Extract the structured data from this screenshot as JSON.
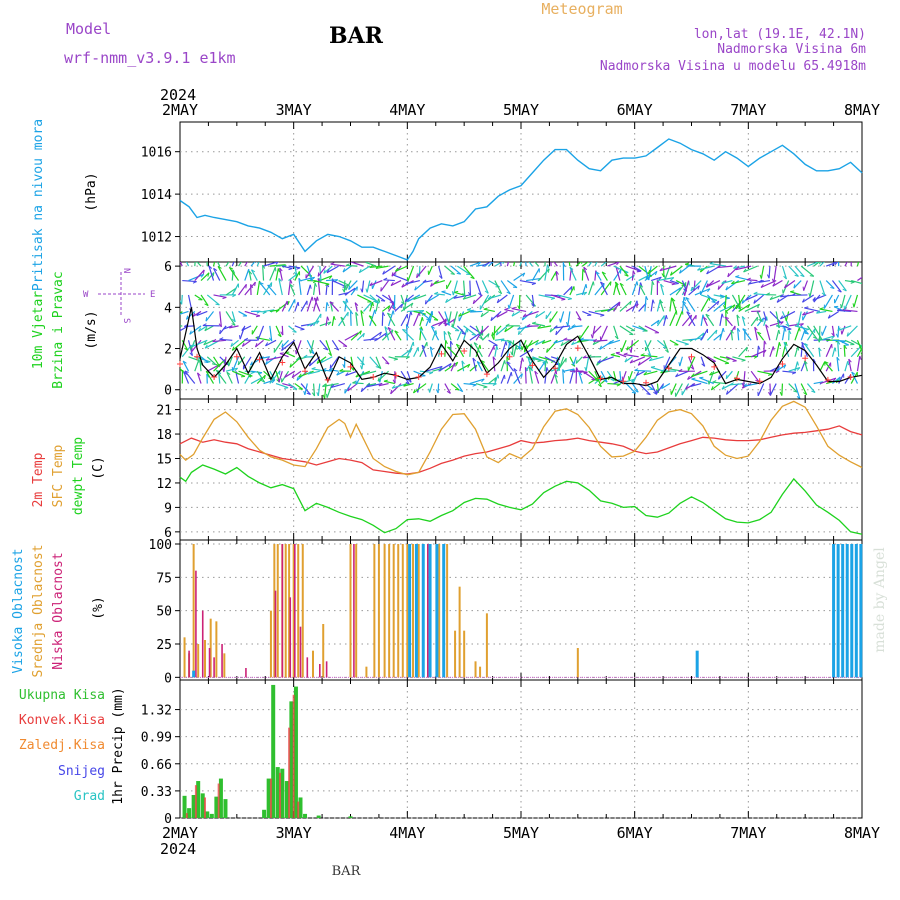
{
  "header": {
    "model_label": "Model",
    "model_name": "wrf-nmm_v3.9.1  e1km",
    "station": "BAR",
    "product": "Meteogram",
    "coords": "lon,lat (19.1E, 42.1N)",
    "elevation": "Nadmorska Visina 6m",
    "model_elevation": "Nadmorska Visina u modelu 65.4918m",
    "footer_station": "BAR",
    "watermark": "made by Angel"
  },
  "time_axis": {
    "year": "2024",
    "ticks": [
      "2MAY",
      "3MAY",
      "4MAY",
      "5MAY",
      "6MAY",
      "7MAY",
      "8MAY"
    ],
    "start_day": 2,
    "end_day": 8
  },
  "colors": {
    "pressure": "#1ba3e6",
    "wind_speed": "#000000",
    "gust": "#ff3b3b",
    "t2m": "#e83c3c",
    "sfc": "#e0a030",
    "dew": "#1ed21e",
    "high_cloud": "#1ba3e6",
    "mid_cloud": "#e0a030",
    "low_cloud": "#cc2277",
    "total_precip": "#2fbf2f",
    "conv_precip": "#e83c3c",
    "freezing": "#f08a30",
    "snow": "#4646e8",
    "hail": "#28c4c4",
    "title_purple": "#9a46c8",
    "meteogram_orange": "#e8b060"
  },
  "chart_data": [
    {
      "type": "line",
      "panel": "pressure",
      "ylabel": "Pritisak na nivou mora",
      "unit": "(hPa)",
      "yticks": [
        1012,
        1014,
        1016
      ],
      "ylim": [
        1010.8,
        1017.4
      ],
      "series": [
        {
          "x": [
            2.0,
            2.08,
            2.15,
            2.22,
            2.3,
            2.4,
            2.5,
            2.6,
            2.7,
            2.8,
            2.9,
            3.0,
            3.1,
            3.2,
            3.3,
            3.4,
            3.5,
            3.6,
            3.7,
            3.8,
            3.9,
            4.0,
            4.05,
            4.1,
            4.2,
            4.3,
            4.4,
            4.5,
            4.6,
            4.7,
            4.8,
            4.9,
            5.0,
            5.1,
            5.2,
            5.3,
            5.4,
            5.5,
            5.6,
            5.7,
            5.8,
            5.9,
            6.0,
            6.1,
            6.2,
            6.3,
            6.4,
            6.5,
            6.6,
            6.7,
            6.8,
            6.9,
            7.0,
            7.1,
            7.2,
            7.3,
            7.4,
            7.5,
            7.6,
            7.7,
            7.8,
            7.9,
            8.0
          ],
          "values": [
            1013.7,
            1013.4,
            1012.9,
            1013.0,
            1012.9,
            1012.8,
            1012.7,
            1012.5,
            1012.4,
            1012.2,
            1011.9,
            1012.1,
            1011.3,
            1011.8,
            1012.1,
            1012.0,
            1011.8,
            1011.5,
            1011.5,
            1011.3,
            1011.1,
            1010.9,
            1011.3,
            1011.9,
            1012.4,
            1012.6,
            1012.5,
            1012.7,
            1013.3,
            1013.4,
            1013.9,
            1014.2,
            1014.4,
            1015.0,
            1015.6,
            1016.1,
            1016.1,
            1015.6,
            1015.2,
            1015.1,
            1015.6,
            1015.7,
            1015.7,
            1015.8,
            1016.2,
            1016.6,
            1016.4,
            1016.1,
            1015.9,
            1015.6,
            1016.0,
            1015.7,
            1015.3,
            1015.7,
            1016.0,
            1016.3,
            1015.9,
            1015.4,
            1015.1,
            1015.1,
            1015.2,
            1015.5,
            1015.0
          ]
        }
      ]
    },
    {
      "type": "line",
      "panel": "wind",
      "ylabel": [
        "10m Vjetar",
        "Brzina i Pravac"
      ],
      "unit": "(m/s)",
      "compass": {
        "n": "N",
        "s": "S",
        "w": "W",
        "e": "E"
      },
      "yticks": [
        0,
        2,
        4,
        6
      ],
      "ylim": [
        -0.45,
        6.2
      ],
      "barb_rows": [
        0.3,
        0.9,
        1.6,
        2.4,
        3.1,
        3.8,
        4.6,
        5.3,
        6.0
      ],
      "series": [
        {
          "name": "speed",
          "x": [
            2.0,
            2.1,
            2.15,
            2.2,
            2.3,
            2.4,
            2.5,
            2.6,
            2.7,
            2.8,
            2.9,
            3.0,
            3.1,
            3.2,
            3.3,
            3.4,
            3.5,
            3.6,
            3.7,
            3.8,
            3.9,
            4.0,
            4.1,
            4.2,
            4.3,
            4.4,
            4.5,
            4.6,
            4.7,
            4.8,
            4.9,
            5.0,
            5.1,
            5.2,
            5.3,
            5.4,
            5.5,
            5.6,
            5.7,
            5.8,
            5.9,
            6.0,
            6.1,
            6.2,
            6.3,
            6.4,
            6.5,
            6.6,
            6.7,
            6.8,
            6.9,
            7.0,
            7.1,
            7.2,
            7.3,
            7.4,
            7.5,
            7.6,
            7.7,
            7.8,
            7.9,
            8.0
          ],
          "values": [
            1.5,
            4.0,
            2.0,
            1.2,
            0.6,
            1.2,
            2.0,
            0.8,
            1.8,
            0.5,
            1.6,
            2.3,
            1.0,
            1.8,
            0.4,
            1.6,
            1.3,
            0.5,
            0.6,
            0.8,
            0.7,
            0.5,
            0.6,
            1.1,
            2.2,
            1.4,
            2.4,
            1.9,
            0.8,
            1.3,
            2.0,
            2.4,
            1.4,
            0.6,
            1.2,
            2.2,
            2.6,
            1.6,
            0.5,
            0.6,
            0.3,
            0.3,
            0.2,
            0.4,
            1.2,
            2.0,
            2.0,
            1.7,
            1.3,
            0.3,
            0.5,
            0.4,
            0.3,
            0.6,
            1.5,
            2.2,
            1.9,
            1.2,
            0.4,
            0.4,
            0.6,
            0.7
          ]
        }
      ]
    },
    {
      "type": "line",
      "panel": "temperature",
      "ylabel": [
        "2m Temp",
        "SFC Temp",
        "dewpt Temp"
      ],
      "unit": "(C)",
      "yticks": [
        6,
        9,
        12,
        15,
        18,
        21
      ],
      "ylim": [
        5.0,
        22.3
      ],
      "series": [
        {
          "name": "2m Temp",
          "x": [
            2.0,
            2.1,
            2.2,
            2.3,
            2.4,
            2.5,
            2.6,
            2.7,
            2.8,
            2.9,
            3.0,
            3.1,
            3.2,
            3.3,
            3.4,
            3.5,
            3.6,
            3.7,
            3.8,
            3.9,
            4.0,
            4.1,
            4.2,
            4.3,
            4.4,
            4.5,
            4.6,
            4.7,
            4.8,
            4.9,
            5.0,
            5.1,
            5.2,
            5.3,
            5.4,
            5.5,
            5.6,
            5.7,
            5.8,
            5.9,
            6.0,
            6.1,
            6.2,
            6.3,
            6.4,
            6.5,
            6.6,
            6.7,
            6.8,
            6.9,
            7.0,
            7.1,
            7.2,
            7.3,
            7.4,
            7.5,
            7.6,
            7.7,
            7.8,
            7.9,
            8.0
          ],
          "values": [
            16.8,
            17.5,
            17.0,
            17.3,
            17.0,
            16.8,
            16.2,
            15.8,
            15.4,
            15.0,
            14.8,
            14.6,
            14.2,
            14.6,
            15.0,
            14.8,
            14.5,
            13.6,
            13.4,
            13.2,
            13.1,
            13.3,
            13.8,
            14.4,
            14.8,
            15.3,
            15.6,
            15.8,
            16.2,
            16.6,
            17.2,
            16.9,
            17.0,
            17.2,
            17.3,
            17.5,
            17.2,
            17.0,
            16.8,
            16.5,
            15.9,
            15.6,
            15.8,
            16.3,
            16.8,
            17.2,
            17.6,
            17.5,
            17.3,
            17.2,
            17.2,
            17.3,
            17.6,
            17.9,
            18.1,
            18.2,
            18.4,
            18.6,
            19.0,
            18.3,
            17.9
          ]
        },
        {
          "name": "SFC Temp",
          "x": [
            2.0,
            2.05,
            2.12,
            2.2,
            2.3,
            2.4,
            2.5,
            2.6,
            2.7,
            2.8,
            2.9,
            3.0,
            3.1,
            3.2,
            3.3,
            3.4,
            3.45,
            3.5,
            3.55,
            3.6,
            3.7,
            3.8,
            3.9,
            4.0,
            4.1,
            4.2,
            4.3,
            4.4,
            4.5,
            4.6,
            4.7,
            4.8,
            4.9,
            5.0,
            5.1,
            5.2,
            5.3,
            5.4,
            5.5,
            5.6,
            5.7,
            5.8,
            5.9,
            6.0,
            6.1,
            6.2,
            6.3,
            6.4,
            6.5,
            6.6,
            6.7,
            6.8,
            6.9,
            7.0,
            7.1,
            7.2,
            7.3,
            7.4,
            7.5,
            7.6,
            7.7,
            7.8,
            7.9,
            8.0
          ],
          "values": [
            15.5,
            14.8,
            15.5,
            17.5,
            19.8,
            20.7,
            19.5,
            17.6,
            16.0,
            15.2,
            14.8,
            14.2,
            14.0,
            16.2,
            18.8,
            19.8,
            19.3,
            17.6,
            19.2,
            17.8,
            15.0,
            14.0,
            13.4,
            13.0,
            13.3,
            15.8,
            18.6,
            20.4,
            20.5,
            18.6,
            15.2,
            14.5,
            15.6,
            15.0,
            16.2,
            18.9,
            20.8,
            21.1,
            20.4,
            18.8,
            16.5,
            15.2,
            15.3,
            15.9,
            17.6,
            19.7,
            20.7,
            21.0,
            20.5,
            19.0,
            16.5,
            15.4,
            15.0,
            15.3,
            17.1,
            19.7,
            21.4,
            22.0,
            21.3,
            19.0,
            16.5,
            15.4,
            14.6,
            13.9
          ]
        },
        {
          "name": "dewpt Temp",
          "x": [
            2.0,
            2.05,
            2.1,
            2.2,
            2.3,
            2.4,
            2.5,
            2.6,
            2.7,
            2.8,
            2.9,
            3.0,
            3.1,
            3.2,
            3.3,
            3.4,
            3.5,
            3.6,
            3.7,
            3.8,
            3.9,
            4.0,
            4.1,
            4.2,
            4.3,
            4.4,
            4.5,
            4.6,
            4.7,
            4.8,
            4.9,
            5.0,
            5.1,
            5.2,
            5.3,
            5.4,
            5.5,
            5.6,
            5.7,
            5.8,
            5.9,
            6.0,
            6.1,
            6.2,
            6.3,
            6.4,
            6.5,
            6.6,
            6.7,
            6.8,
            6.9,
            7.0,
            7.1,
            7.2,
            7.3,
            7.4,
            7.5,
            7.6,
            7.7,
            7.8,
            7.9,
            8.0
          ],
          "values": [
            12.7,
            12.2,
            13.3,
            14.2,
            13.7,
            13.1,
            13.9,
            12.8,
            12.0,
            11.4,
            11.8,
            11.3,
            8.6,
            9.5,
            9.0,
            8.4,
            7.9,
            7.5,
            6.8,
            5.9,
            6.4,
            7.5,
            7.6,
            7.3,
            8.0,
            8.6,
            9.6,
            10.1,
            10.0,
            9.4,
            9.0,
            8.7,
            9.4,
            10.8,
            11.6,
            12.2,
            12.0,
            11.1,
            9.8,
            9.5,
            9.0,
            9.1,
            8.0,
            7.8,
            8.3,
            9.5,
            10.3,
            9.6,
            8.6,
            7.6,
            7.2,
            7.1,
            7.5,
            8.4,
            10.6,
            12.5,
            11.0,
            9.3,
            8.4,
            7.4,
            6.0,
            5.7
          ]
        }
      ]
    },
    {
      "type": "bar",
      "panel": "clouds",
      "ylabel": [
        "Visoka Oblacnost",
        "Srednja Oblacnost",
        "Niska Oblacnost"
      ],
      "unit": "(%)",
      "yticks": [
        0,
        25,
        50,
        75,
        100
      ],
      "ylim": [
        -2,
        103
      ],
      "series": [
        {
          "name": "Srednja Oblacnost",
          "x": [
            2.04,
            2.08,
            2.12,
            2.16,
            2.22,
            2.27,
            2.32,
            2.39,
            2.8,
            2.83,
            2.86,
            2.9,
            2.93,
            2.96,
            3.0,
            3.04,
            3.08,
            3.17,
            3.26,
            3.5,
            3.55,
            3.64,
            3.71,
            3.75,
            3.8,
            3.84,
            3.88,
            3.92,
            3.96,
            4.0,
            4.05,
            4.1,
            4.2,
            4.28,
            4.35,
            4.42,
            4.46,
            4.5,
            4.6,
            4.64,
            4.7,
            5.5
          ],
          "values": [
            30,
            18,
            100,
            25,
            28,
            44,
            42,
            18,
            50,
            100,
            100,
            100,
            100,
            100,
            100,
            100,
            100,
            20,
            40,
            100,
            100,
            8,
            100,
            100,
            100,
            100,
            100,
            100,
            100,
            100,
            100,
            100,
            100,
            100,
            100,
            35,
            68,
            35,
            12,
            8,
            48,
            22
          ]
        },
        {
          "name": "Niska Oblacnost",
          "x": [
            2.08,
            2.14,
            2.2,
            2.26,
            2.3,
            2.37,
            2.58,
            2.84,
            2.9,
            2.97,
            3.01,
            3.06,
            3.12,
            3.23,
            3.29,
            3.53,
            4.18
          ],
          "values": [
            20,
            80,
            50,
            22,
            15,
            25,
            7,
            65,
            100,
            60,
            100,
            38,
            15,
            10,
            12,
            100,
            100
          ]
        },
        {
          "name": "Visoka Oblacnost",
          "x": [
            2.12,
            4.02,
            4.08,
            4.14,
            4.2,
            4.26,
            4.32,
            6.55,
            7.75,
            7.79,
            7.83,
            7.87,
            7.91,
            7.95,
            7.99
          ],
          "values": [
            5,
            100,
            100,
            100,
            100,
            100,
            100,
            20,
            100,
            100,
            100,
            100,
            100,
            100,
            100
          ]
        }
      ]
    },
    {
      "type": "bar",
      "panel": "precip",
      "ylabel": "1hr Precip (mm)",
      "labels": [
        "Ukupna Kisa",
        "Konvek.Kisa",
        "Zaledj.Kisa",
        "Snijeg",
        "Grad"
      ],
      "yticks": [
        "0",
        "0.33",
        "0.66",
        "0.99",
        "1.32"
      ],
      "ylim": [
        0,
        1.68
      ],
      "series": [
        {
          "name": "Ukupna Kisa",
          "x": [
            2.04,
            2.08,
            2.12,
            2.16,
            2.2,
            2.24,
            2.28,
            2.32,
            2.36,
            2.4,
            2.74,
            2.78,
            2.82,
            2.86,
            2.9,
            2.94,
            2.98,
            3.02,
            3.06,
            3.1,
            3.22,
            3.5
          ],
          "values": [
            0.27,
            0.12,
            0.28,
            0.45,
            0.3,
            0.08,
            0.05,
            0.26,
            0.48,
            0.23,
            0.1,
            0.48,
            1.62,
            0.62,
            0.6,
            0.45,
            1.42,
            1.6,
            0.25,
            0.05,
            0.03,
            0.02
          ]
        },
        {
          "name": "Konvek.Kisa",
          "x": [
            2.06,
            2.14,
            2.22,
            2.34,
            2.8,
            2.88,
            2.96,
            3.0,
            3.04
          ],
          "values": [
            0.06,
            0.4,
            0.25,
            0.42,
            0.48,
            0.55,
            1.1,
            1.5,
            0.2
          ]
        }
      ]
    }
  ]
}
